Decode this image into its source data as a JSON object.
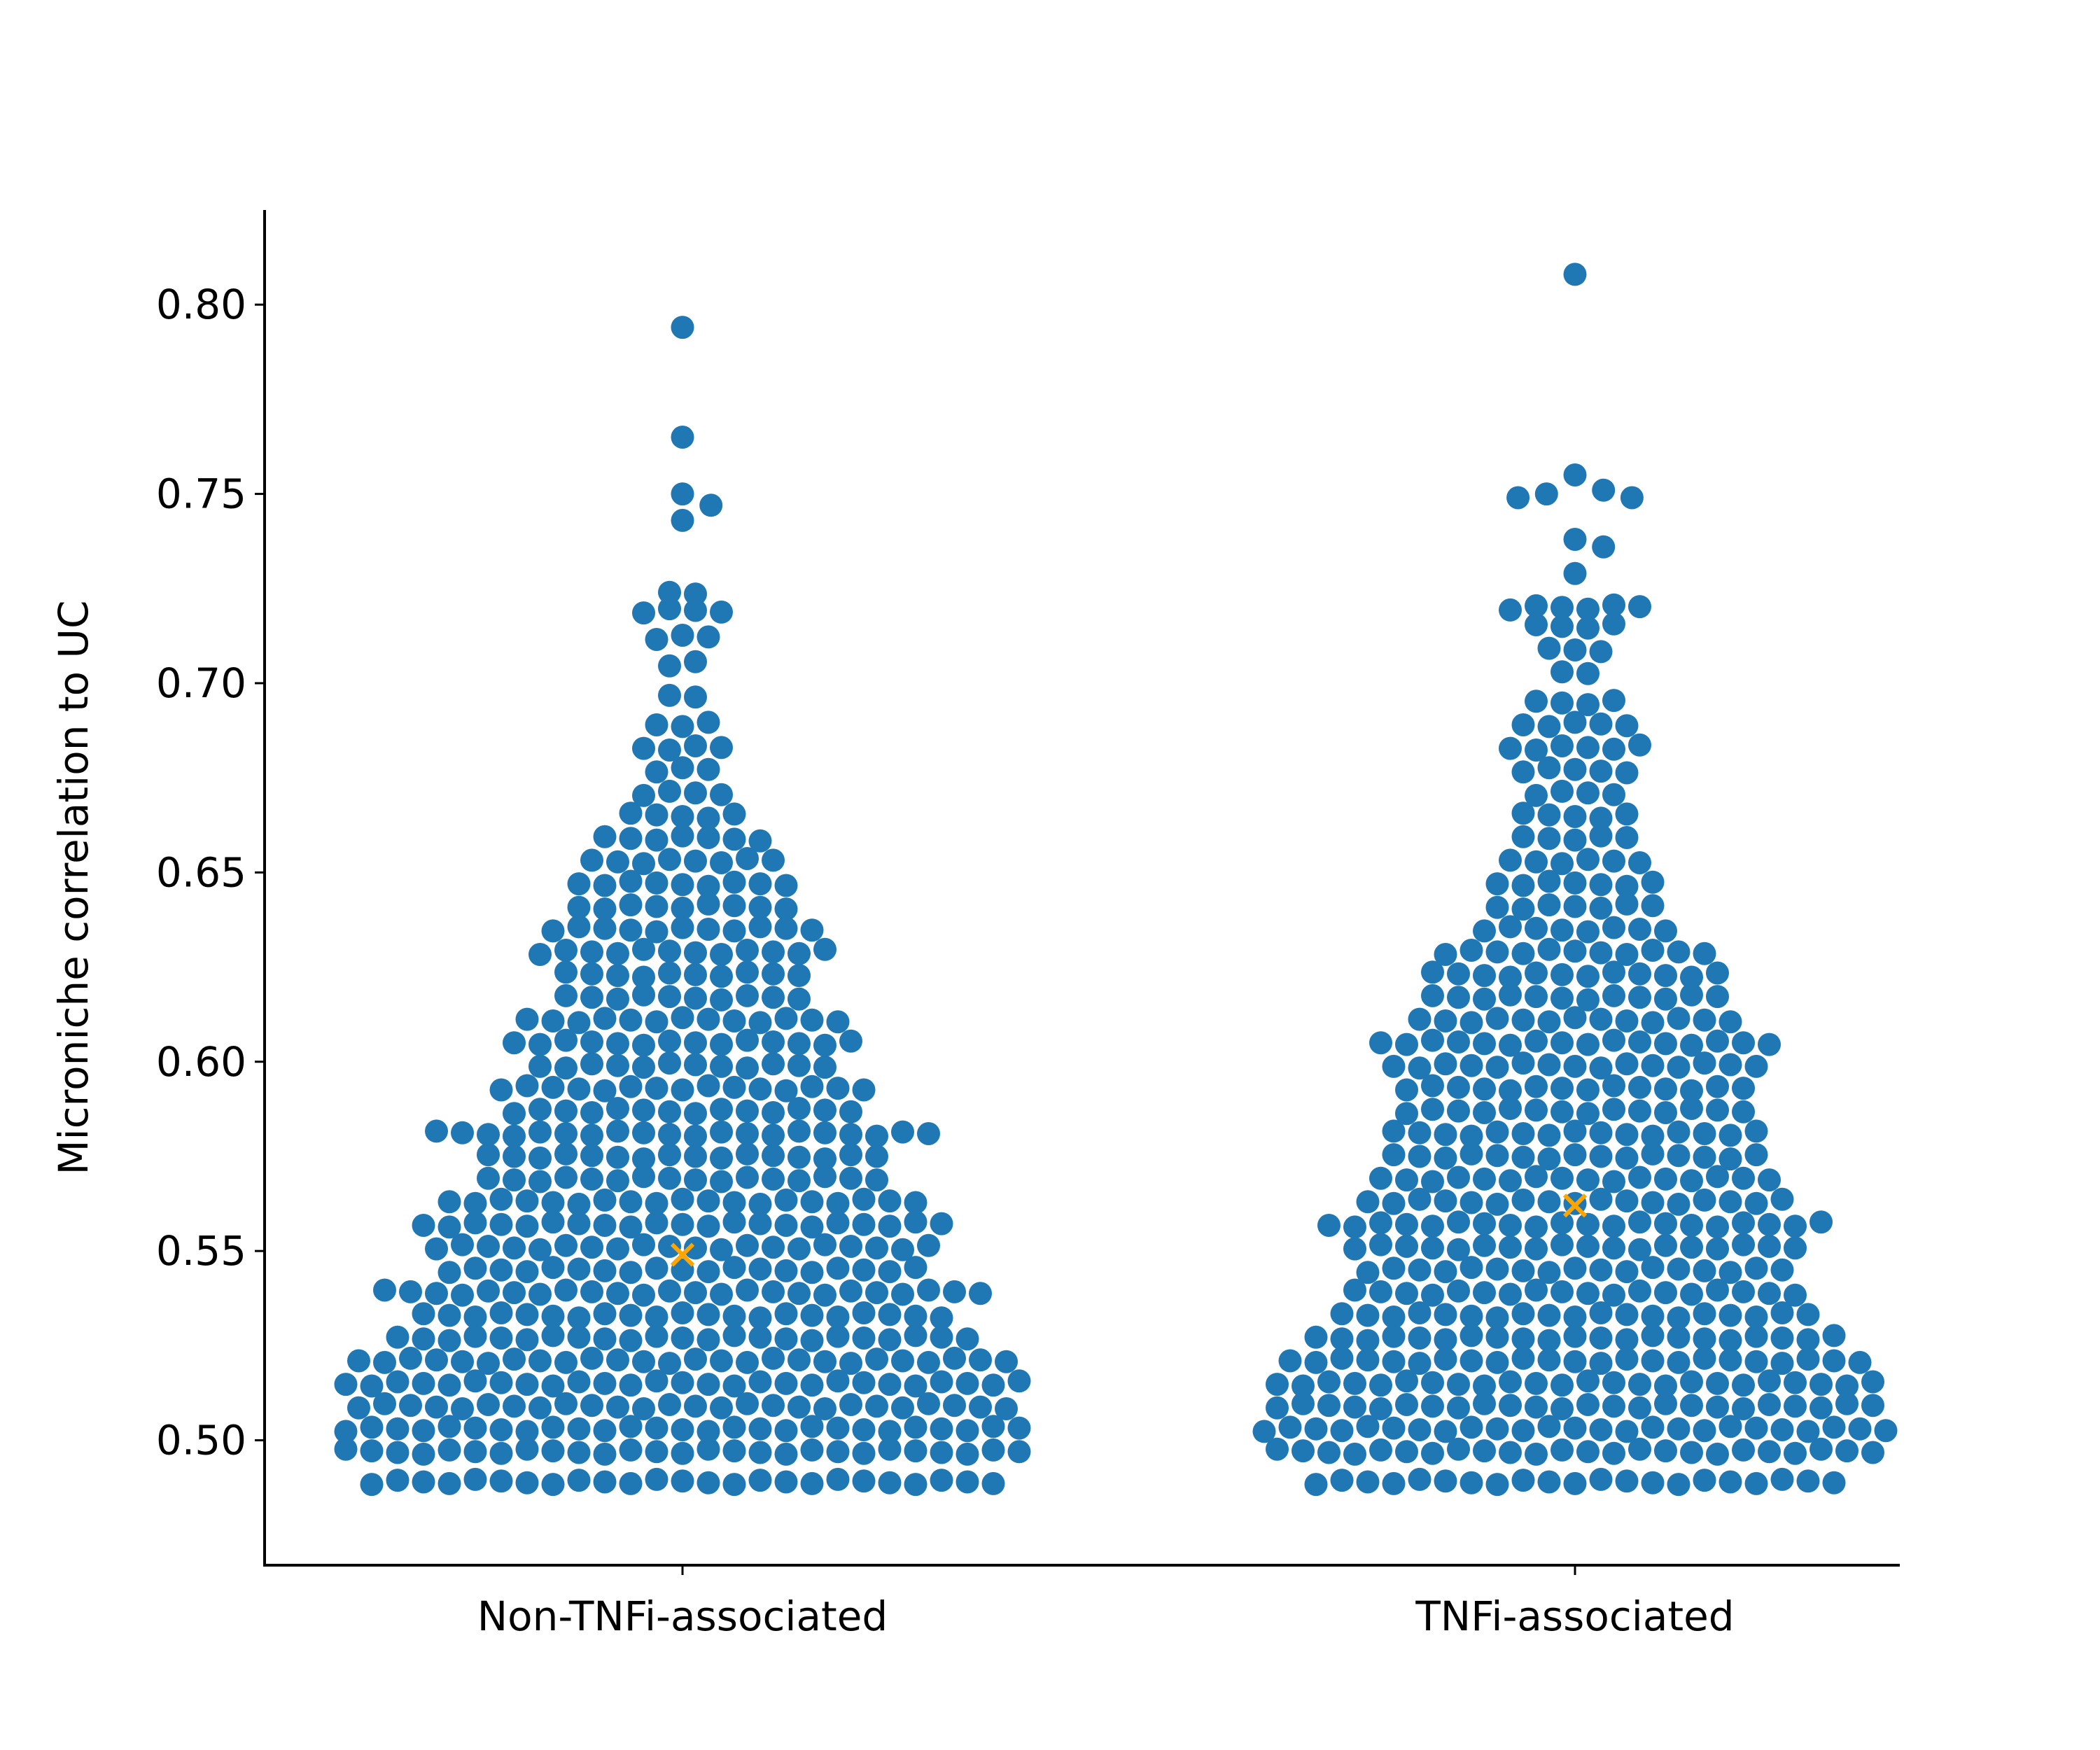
{
  "chart_data": {
    "type": "swarm",
    "title": "",
    "xlabel": "",
    "ylabel": "Microniche correlation to UC",
    "ylim": [
      0.467,
      0.825
    ],
    "yticks": [
      "0.50",
      "0.55",
      "0.60",
      "0.65",
      "0.70",
      "0.75",
      "0.80"
    ],
    "categories": [
      "Non-TNFi-associated",
      "TNFi-associated"
    ],
    "grid": false,
    "legend": "none",
    "colors": {
      "points": "#1f77b4",
      "mean_marker": "#ffa500",
      "axis": "#000000"
    },
    "series": [
      {
        "category": "Non-TNFi-associated",
        "mean": 0.549,
        "outliers": [
          0.794,
          0.765,
          0.75,
          0.747,
          0.743
        ],
        "bins": [
          {
            "y": 0.489,
            "n": 25
          },
          {
            "y": 0.497,
            "n": 27
          },
          {
            "y": 0.503,
            "n": 27
          },
          {
            "y": 0.509,
            "n": 26
          },
          {
            "y": 0.515,
            "n": 27
          },
          {
            "y": 0.521,
            "n": 26
          },
          {
            "y": 0.527,
            "n": 23
          },
          {
            "y": 0.533,
            "n": 21
          },
          {
            "y": 0.539,
            "n": 24
          },
          {
            "y": 0.545,
            "n": 19
          },
          {
            "y": 0.551,
            "n": 20
          },
          {
            "y": 0.557,
            "n": 21
          },
          {
            "y": 0.563,
            "n": 19
          },
          {
            "y": 0.569,
            "n": 16
          },
          {
            "y": 0.575,
            "n": 16
          },
          {
            "y": 0.581,
            "n": 20
          },
          {
            "y": 0.587,
            "n": 14
          },
          {
            "y": 0.593,
            "n": 15
          },
          {
            "y": 0.599,
            "n": 12
          },
          {
            "y": 0.605,
            "n": 14
          },
          {
            "y": 0.611,
            "n": 13
          },
          {
            "y": 0.617,
            "n": 10
          },
          {
            "y": 0.623,
            "n": 10
          },
          {
            "y": 0.629,
            "n": 12
          },
          {
            "y": 0.635,
            "n": 11
          },
          {
            "y": 0.641,
            "n": 9
          },
          {
            "y": 0.647,
            "n": 9
          },
          {
            "y": 0.653,
            "n": 8
          },
          {
            "y": 0.659,
            "n": 7
          },
          {
            "y": 0.665,
            "n": 5
          },
          {
            "y": 0.671,
            "n": 4
          },
          {
            "y": 0.677,
            "n": 3
          },
          {
            "y": 0.683,
            "n": 4
          },
          {
            "y": 0.689,
            "n": 3
          },
          {
            "y": 0.697,
            "n": 2
          },
          {
            "y": 0.705,
            "n": 2
          },
          {
            "y": 0.712,
            "n": 3
          },
          {
            "y": 0.719,
            "n": 4
          },
          {
            "y": 0.724,
            "n": 2
          }
        ]
      },
      {
        "category": "TNFi-associated",
        "mean": 0.562,
        "outliers": [
          0.808,
          0.755,
          0.751,
          0.75,
          0.749,
          0.749,
          0.738,
          0.736,
          0.729
        ],
        "bins": [
          {
            "y": 0.489,
            "n": 21
          },
          {
            "y": 0.497,
            "n": 24
          },
          {
            "y": 0.503,
            "n": 25
          },
          {
            "y": 0.509,
            "n": 24
          },
          {
            "y": 0.515,
            "n": 24
          },
          {
            "y": 0.521,
            "n": 23
          },
          {
            "y": 0.527,
            "n": 21
          },
          {
            "y": 0.533,
            "n": 19
          },
          {
            "y": 0.539,
            "n": 18
          },
          {
            "y": 0.545,
            "n": 17
          },
          {
            "y": 0.551,
            "n": 18
          },
          {
            "y": 0.557,
            "n": 20
          },
          {
            "y": 0.563,
            "n": 17
          },
          {
            "y": 0.569,
            "n": 16
          },
          {
            "y": 0.575,
            "n": 15
          },
          {
            "y": 0.581,
            "n": 15
          },
          {
            "y": 0.587,
            "n": 14
          },
          {
            "y": 0.593,
            "n": 14
          },
          {
            "y": 0.599,
            "n": 15
          },
          {
            "y": 0.605,
            "n": 16
          },
          {
            "y": 0.611,
            "n": 13
          },
          {
            "y": 0.617,
            "n": 12
          },
          {
            "y": 0.623,
            "n": 12
          },
          {
            "y": 0.629,
            "n": 11
          },
          {
            "y": 0.635,
            "n": 8
          },
          {
            "y": 0.641,
            "n": 7
          },
          {
            "y": 0.647,
            "n": 7
          },
          {
            "y": 0.653,
            "n": 6
          },
          {
            "y": 0.659,
            "n": 5
          },
          {
            "y": 0.665,
            "n": 5
          },
          {
            "y": 0.671,
            "n": 4
          },
          {
            "y": 0.677,
            "n": 5
          },
          {
            "y": 0.683,
            "n": 6
          },
          {
            "y": 0.689,
            "n": 5
          },
          {
            "y": 0.695,
            "n": 4
          },
          {
            "y": 0.703,
            "n": 2
          },
          {
            "y": 0.709,
            "n": 3
          },
          {
            "y": 0.715,
            "n": 4
          },
          {
            "y": 0.72,
            "n": 6
          }
        ]
      }
    ]
  }
}
